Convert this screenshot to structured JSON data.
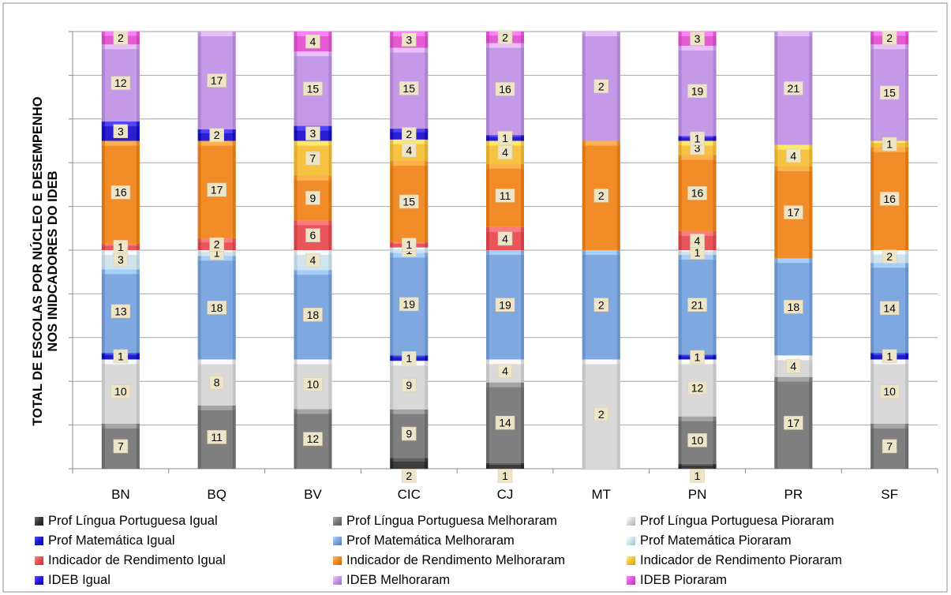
{
  "chart_data": {
    "type": "bar",
    "stacked": true,
    "normalized": true,
    "ylabel": "TOTAL DE ESCOLAS POR NÚCLEO E DESEMPENHO NOS INIDCADORES DO IDEB",
    "categories": [
      "BN",
      "BQ",
      "BV",
      "CIC",
      "CJ",
      "MT",
      "PN",
      "PR",
      "SF"
    ],
    "grid": true,
    "legend_position": "bottom",
    "series": [
      {
        "name": "Prof Língua Portuguesa Igual",
        "color": "#3c3c3c",
        "values": [
          0,
          0,
          0,
          2,
          1,
          0,
          1,
          0,
          0
        ]
      },
      {
        "name": "Prof Língua Portuguesa Melhoraram",
        "color": "#7f7f7f",
        "values": [
          7,
          11,
          12,
          9,
          14,
          0,
          10,
          17,
          7
        ]
      },
      {
        "name": "Prof Língua Portuguesa Pioraram",
        "color": "#d9d9d9",
        "values": [
          10,
          8,
          10,
          9,
          4,
          2,
          12,
          4,
          10
        ]
      },
      {
        "name": "Prof Matemática Igual",
        "color": "#1f1fc8",
        "values": [
          1,
          0,
          0,
          1,
          0,
          0,
          1,
          0,
          1
        ]
      },
      {
        "name": "Prof Matemática Melhoraram",
        "color": "#7fa8e0",
        "values": [
          13,
          18,
          18,
          19,
          19,
          2,
          21,
          18,
          14
        ]
      },
      {
        "name": "Prof Matemática Pioraram",
        "color": "#cfe4ee",
        "values": [
          3,
          1,
          4,
          1,
          0,
          0,
          1,
          0,
          2
        ]
      },
      {
        "name": "Indicador de Rendimento Igual",
        "color": "#e8555a",
        "values": [
          1,
          2,
          6,
          1,
          4,
          0,
          4,
          0,
          0
        ]
      },
      {
        "name": "Indicador de Rendimento Melhoraram",
        "color": "#f28c28",
        "values": [
          16,
          17,
          9,
          15,
          11,
          2,
          16,
          17,
          16
        ]
      },
      {
        "name": "Indicador de Rendimento Pioraram",
        "color": "#f5c242",
        "values": [
          0,
          0,
          7,
          4,
          4,
          0,
          3,
          4,
          1
        ]
      },
      {
        "name": "IDEB Igual",
        "color": "#2a1fd0",
        "values": [
          3,
          2,
          3,
          2,
          1,
          0,
          1,
          0,
          0
        ]
      },
      {
        "name": "IDEB Melhoraram",
        "color": "#c49ae8",
        "values": [
          12,
          17,
          15,
          15,
          16,
          2,
          19,
          21,
          15
        ]
      },
      {
        "name": "IDEB Pioraram",
        "color": "#e45bd2",
        "values": [
          2,
          0,
          4,
          3,
          2,
          0,
          3,
          0,
          2
        ]
      }
    ]
  }
}
